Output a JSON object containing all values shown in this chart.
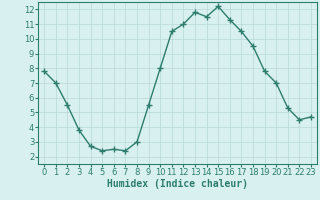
{
  "x": [
    0,
    1,
    2,
    3,
    4,
    5,
    6,
    7,
    8,
    9,
    10,
    11,
    12,
    13,
    14,
    15,
    16,
    17,
    18,
    19,
    20,
    21,
    22,
    23
  ],
  "y": [
    7.8,
    7.0,
    5.5,
    3.8,
    2.7,
    2.4,
    2.5,
    2.4,
    3.0,
    5.5,
    8.0,
    10.5,
    11.0,
    11.8,
    11.5,
    12.2,
    11.3,
    10.5,
    9.5,
    7.8,
    7.0,
    5.3,
    4.5,
    4.7
  ],
  "title": "",
  "xlabel": "Humidex (Indice chaleur)",
  "ylabel": "",
  "xlim": [
    -0.5,
    23.5
  ],
  "ylim": [
    1.5,
    12.5
  ],
  "line_color": "#2d7d6e",
  "marker": "+",
  "bg_color": "#d8f0f0",
  "grid_color": "#b8d8d8",
  "label_fontsize": 7,
  "tick_fontsize": 6,
  "yticks": [
    2,
    3,
    4,
    5,
    6,
    7,
    8,
    9,
    10,
    11,
    12
  ],
  "xticks": [
    0,
    1,
    2,
    3,
    4,
    5,
    6,
    7,
    8,
    9,
    10,
    11,
    12,
    13,
    14,
    15,
    16,
    17,
    18,
    19,
    20,
    21,
    22,
    23
  ]
}
